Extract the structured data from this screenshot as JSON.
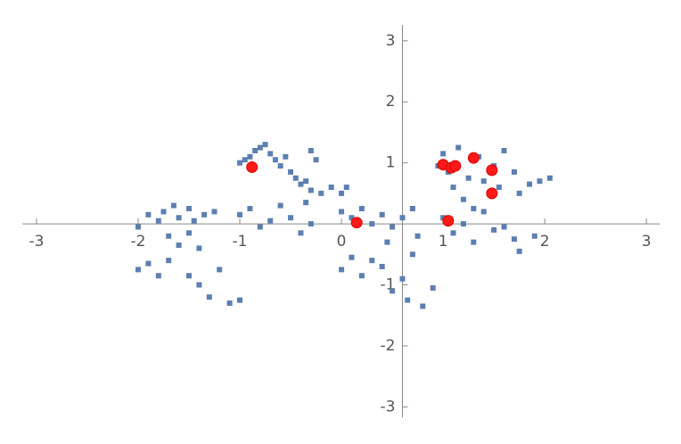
{
  "chart_data": {
    "type": "scatter",
    "xlim": [
      -3.14,
      3.13
    ],
    "ylim": [
      -3.17,
      3.26
    ],
    "xticks": [
      -3,
      -2,
      -1,
      0,
      1,
      2,
      3
    ],
    "yticks": [
      -3,
      -2,
      -1,
      1,
      2,
      3
    ],
    "y_axis_at": 0.6,
    "series": [
      {
        "color": "#5c7fb0",
        "x": [
          -1.0,
          -0.95,
          -0.9,
          -0.85,
          -0.8,
          -0.75,
          -0.7,
          -0.65,
          -0.6,
          -0.55,
          -0.5,
          -0.45,
          -0.4,
          -0.35,
          -0.3,
          -0.25,
          -0.3,
          -0.2,
          -0.1,
          0.0,
          0.05,
          -2.0,
          -1.9,
          -1.8,
          -1.75,
          -1.65,
          -1.6,
          -1.5,
          -1.45,
          -1.35,
          -1.25,
          -1.7,
          -1.6,
          -1.5,
          -1.4,
          -2.0,
          -1.9,
          -1.8,
          -1.7,
          -1.5,
          -1.4,
          -1.3,
          -1.2,
          -1.1,
          -1.0,
          -1.0,
          -0.9,
          -0.8,
          -0.7,
          -0.6,
          -0.5,
          -0.4,
          -0.3,
          -0.35,
          0.0,
          0.1,
          0.2,
          0.3,
          0.4,
          0.5,
          0.6,
          0.7,
          0.0,
          0.1,
          0.2,
          0.3,
          0.4,
          0.45,
          0.5,
          0.6,
          0.65,
          0.7,
          0.8,
          0.9,
          0.75,
          0.95,
          1.0,
          1.05,
          1.1,
          1.15,
          1.2,
          1.25,
          1.3,
          1.35,
          1.4,
          1.5,
          1.55,
          1.6,
          1.7,
          1.75,
          1.85,
          1.95,
          2.05,
          1.0,
          1.1,
          1.2,
          1.3,
          1.4,
          1.5,
          1.6,
          1.7,
          1.75,
          1.9
        ],
        "values": [
          1.0,
          1.05,
          1.1,
          1.2,
          1.25,
          1.3,
          1.15,
          1.05,
          0.95,
          1.1,
          0.85,
          0.75,
          0.65,
          0.7,
          1.2,
          1.05,
          0.55,
          0.5,
          0.6,
          0.5,
          0.6,
          -0.05,
          0.15,
          0.05,
          0.2,
          0.3,
          0.1,
          0.25,
          0.05,
          0.15,
          0.2,
          -0.2,
          -0.35,
          -0.15,
          -0.4,
          -0.75,
          -0.65,
          -0.85,
          -0.6,
          -0.85,
          -1.0,
          -1.2,
          -0.75,
          -1.3,
          -1.25,
          0.15,
          0.25,
          -0.05,
          0.05,
          0.3,
          0.1,
          -0.15,
          0.0,
          0.35,
          0.2,
          0.1,
          0.25,
          0.0,
          0.15,
          -0.05,
          0.1,
          0.25,
          -0.75,
          -0.55,
          -0.85,
          -0.6,
          -0.7,
          -0.3,
          -1.1,
          -0.9,
          -1.25,
          -0.5,
          -1.35,
          -1.05,
          -0.2,
          0.95,
          1.15,
          0.85,
          0.6,
          1.25,
          0.4,
          0.75,
          0.25,
          1.1,
          0.7,
          0.95,
          0.6,
          1.2,
          0.85,
          0.5,
          0.65,
          0.7,
          0.75,
          0.1,
          -0.15,
          0.0,
          -0.3,
          0.2,
          -0.1,
          -0.05,
          -0.25,
          -0.45,
          -0.2
        ]
      },
      {
        "color": "#ff1a1a",
        "x": [
          -0.88,
          0.15,
          1.05,
          1.0,
          1.08,
          1.12,
          1.3,
          1.48,
          1.48
        ],
        "values": [
          0.93,
          0.02,
          0.05,
          0.97,
          0.92,
          0.95,
          1.08,
          0.88,
          0.5
        ]
      }
    ]
  }
}
